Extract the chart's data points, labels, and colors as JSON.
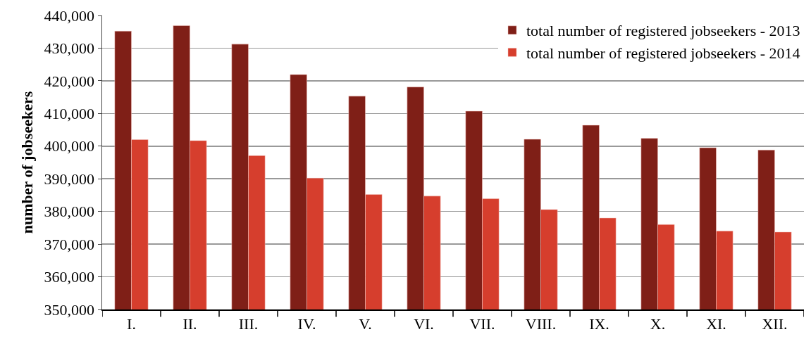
{
  "chart_data": {
    "type": "bar",
    "ylabel": "number of jobseekers",
    "categories": [
      "I.",
      "II.",
      "III.",
      "IV.",
      "V.",
      "VI.",
      "VII.",
      "VIII.",
      "IX.",
      "X.",
      "XI.",
      "XII."
    ],
    "series": [
      {
        "name": "total number of registered jobseekers - 2013",
        "color": "#7f1f17",
        "values": [
          435200,
          436900,
          431200,
          421900,
          415300,
          418100,
          410700,
          402100,
          406400,
          402400,
          399500,
          398800
        ]
      },
      {
        "name": "total number of registered jobseekers - 2014",
        "color": "#d63e2d",
        "values": [
          402000,
          401700,
          397100,
          390200,
          385200,
          384700,
          383900,
          380600,
          378000,
          376000,
          374000,
          373700
        ]
      }
    ],
    "ylim": [
      350000,
      440000
    ],
    "yticks": [
      {
        "value": 350000,
        "label": "350,000"
      },
      {
        "value": 360000,
        "label": "360,000"
      },
      {
        "value": 370000,
        "label": "370,000"
      },
      {
        "value": 380000,
        "label": "380,000"
      },
      {
        "value": 390000,
        "label": "390,000"
      },
      {
        "value": 400000,
        "label": "400,000"
      },
      {
        "value": 410000,
        "label": "410,000"
      },
      {
        "value": 420000,
        "label": "420,000"
      },
      {
        "value": 430000,
        "label": "430,000"
      },
      {
        "value": 440000,
        "label": "440,000"
      }
    ],
    "grid": "y",
    "legend": "top right"
  }
}
